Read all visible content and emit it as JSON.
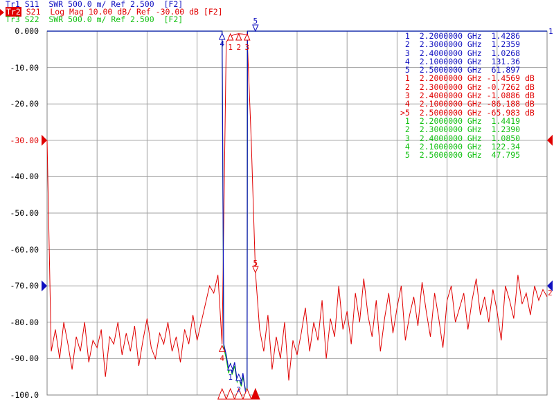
{
  "header": {
    "traces": [
      {
        "id": "Tr1",
        "text": "S11  SWR 500.0 m/ Ref 2.500  [F2]",
        "color": "#1010c0"
      },
      {
        "id": "Tr2",
        "text": "S21  Log Mag 10.00 dB/ Ref -30.00 dB [F2]",
        "color": "#e00000"
      },
      {
        "id": "Tr3",
        "text": "S22  SWR 500.0 m/ Ref 2.500  [F2]",
        "color": "#10c010"
      }
    ]
  },
  "markers_table": [
    {
      "t": "1",
      "n": "1",
      "f": "2.2000000 GHz",
      "v": " 1.4286",
      "c": "#1010c0"
    },
    {
      "t": "1",
      "n": "2",
      "f": "2.3000000 GHz",
      "v": " 1.2359",
      "c": "#1010c0"
    },
    {
      "t": "1",
      "n": "3",
      "f": "2.4000000 GHz",
      "v": " 1.0268",
      "c": "#1010c0"
    },
    {
      "t": "1",
      "n": "4",
      "f": "2.1000000 GHz",
      "v": " 131.36",
      "c": "#1010c0"
    },
    {
      "t": "1",
      "n": "5",
      "f": "2.5000000 GHz",
      "v": " 61.897",
      "c": "#1010c0"
    },
    {
      "t": "2",
      "n": "1",
      "f": "2.2000000 GHz",
      "v": "-1.4569 dB",
      "c": "#e00000"
    },
    {
      "t": "2",
      "n": "2",
      "f": "2.3000000 GHz",
      "v": "-0.7262 dB",
      "c": "#e00000"
    },
    {
      "t": "2",
      "n": "3",
      "f": "2.4000000 GHz",
      "v": "-1.0886 dB",
      "c": "#e00000"
    },
    {
      "t": "2",
      "n": "4",
      "f": "2.1000000 GHz",
      "v": "-86.188 dB",
      "c": "#e00000"
    },
    {
      "t": "2",
      "n": ">5",
      "f": "2.5000000 GHz",
      "v": "-65.983 dB",
      "c": "#e00000"
    },
    {
      "t": "3",
      "n": "1",
      "f": "2.2000000 GHz",
      "v": " 1.4419",
      "c": "#10c010"
    },
    {
      "t": "3",
      "n": "2",
      "f": "2.3000000 GHz",
      "v": " 1.2390",
      "c": "#10c010"
    },
    {
      "t": "3",
      "n": "3",
      "f": "2.4000000 GHz",
      "v": " 1.0850",
      "c": "#10c010"
    },
    {
      "t": "3",
      "n": "4",
      "f": "2.1000000 GHz",
      "v": " 122.34",
      "c": "#10c010"
    },
    {
      "t": "3",
      "n": "5",
      "f": "2.5000000 GHz",
      "v": " 47.795",
      "c": "#10c010"
    }
  ],
  "chart_data": {
    "type": "line",
    "xlim_ghz": [
      0,
      6
    ],
    "ylim_db": [
      -100,
      0
    ],
    "swr_range": [
      1.0,
      6.0
    ],
    "swr_ref": 2.5,
    "grid": true,
    "y_tick_labels": [
      "0.000",
      "-10.00",
      "-20.00",
      "-30.00",
      "-40.00",
      "-50.00",
      "-60.00",
      "-70.00",
      "-80.00",
      "-90.00",
      "-100.0"
    ],
    "right_ref_labels": [
      "1",
      "2"
    ],
    "s21": {
      "name": "S21",
      "color": "#e00000",
      "x_start": 0,
      "x_step": 0.05,
      "values": [
        -30,
        -88,
        -82,
        -90,
        -80,
        -86,
        -93,
        -84,
        -88,
        -80,
        -91,
        -85,
        -87,
        -82,
        -95,
        -84,
        -86,
        -80,
        -89,
        -83,
        -88,
        -81,
        -92,
        -85,
        -79,
        -87,
        -90,
        -83,
        -86,
        -80,
        -88,
        -84,
        -91,
        -82,
        -86,
        -78,
        -85,
        -80,
        -75,
        -70,
        -72,
        -67,
        -86,
        -3,
        -1.46,
        -0.9,
        -0.73,
        -0.8,
        -1.09,
        -30,
        -66,
        -82,
        -88,
        -78,
        -93,
        -84,
        -90,
        -80,
        -96,
        -85,
        -89,
        -83,
        -76,
        -88,
        -80,
        -85,
        -74,
        -90,
        -79,
        -84,
        -70,
        -82,
        -77,
        -86,
        -72,
        -80,
        -68,
        -78,
        -84,
        -74,
        -88,
        -79,
        -72,
        -83,
        -76,
        -70,
        -85,
        -78,
        -73,
        -81,
        -69,
        -77,
        -84,
        -72,
        -79,
        -87,
        -74,
        -70,
        -80,
        -76,
        -72,
        -82,
        -74,
        -68,
        -78,
        -73,
        -80,
        -71,
        -77,
        -85,
        -70,
        -74,
        -79,
        -67,
        -75,
        -72,
        -78,
        -70,
        -74,
        -71,
        -73
      ]
    },
    "s11": {
      "name": "S11",
      "color": "#1010c0",
      "x": [
        0,
        2.095,
        2.1,
        2.12,
        2.15,
        2.18,
        2.2,
        2.22,
        2.25,
        2.28,
        2.3,
        2.33,
        2.35,
        2.38,
        2.4,
        2.405,
        6
      ],
      "values": [
        131,
        131,
        131,
        1.7,
        1.55,
        1.35,
        1.43,
        1.3,
        1.45,
        1.2,
        1.24,
        1.15,
        1.3,
        1.05,
        1.03,
        61,
        61
      ]
    },
    "s22": {
      "name": "S22",
      "color": "#10c010",
      "x": [
        0,
        2.095,
        2.1,
        2.12,
        2.15,
        2.18,
        2.2,
        2.22,
        2.25,
        2.28,
        2.3,
        2.33,
        2.35,
        2.38,
        2.4,
        2.405,
        6
      ],
      "values": [
        122,
        122,
        122,
        1.65,
        1.5,
        1.3,
        1.44,
        1.28,
        1.4,
        1.18,
        1.24,
        1.12,
        1.25,
        1.08,
        1.085,
        47,
        47
      ]
    },
    "markers": [
      {
        "n": "1",
        "f": 2.2
      },
      {
        "n": "2",
        "f": 2.3
      },
      {
        "n": "3",
        "f": 2.4
      },
      {
        "n": "4",
        "f": 2.1
      },
      {
        "n": "5",
        "f": 2.5
      }
    ]
  }
}
